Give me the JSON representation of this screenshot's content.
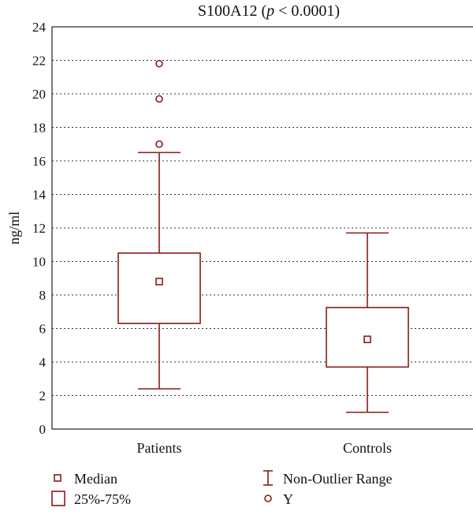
{
  "chart_data": {
    "type": "box",
    "title": "S100A12 (",
    "title_italic": "p",
    "title_rest": " < 0.0001)",
    "ylabel": "ng/ml",
    "xlabel": "",
    "ylim": [
      0,
      24
    ],
    "yticks": [
      0,
      2,
      4,
      6,
      8,
      10,
      12,
      14,
      16,
      18,
      20,
      22,
      24
    ],
    "grid": true,
    "legend_position": "bottom",
    "categories": [
      "Patients",
      "Controls"
    ],
    "boxes": [
      {
        "category": "Patients",
        "min": 2.4,
        "q1": 6.3,
        "median": 8.8,
        "q3": 10.5,
        "max": 16.5,
        "outliers": [
          17.0,
          19.7,
          21.8
        ]
      },
      {
        "category": "Controls",
        "min": 1.0,
        "q1": 3.7,
        "median": 5.35,
        "q3": 7.25,
        "max": 11.7,
        "outliers": []
      }
    ],
    "legend": [
      {
        "symbol": "small-square",
        "label": "Median"
      },
      {
        "symbol": "whisker",
        "label": "Non-Outlier Range"
      },
      {
        "symbol": "large-square",
        "label": "25%-75%"
      },
      {
        "symbol": "circle",
        "label": "Y"
      }
    ],
    "colors": {
      "box": "#8b1a1a"
    }
  }
}
